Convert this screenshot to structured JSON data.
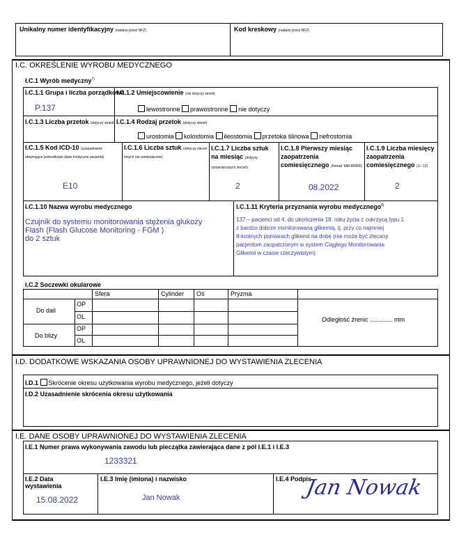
{
  "header": {
    "uid_label": "Unikalny numer identyfikacyjny",
    "uid_note": "(nadany przez NFZ)",
    "barcode_label": "Kod kreskowy",
    "barcode_note": "(nadany przez NFZ)"
  },
  "ic": {
    "title": "I.C. OKREŚLENIE WYROBU MEDYCZNEGO",
    "c1_label": "I.C.1 Wyrób medyczny",
    "c1_sup": "7)",
    "c11_label": "I.C.1.1 Grupa i liczba porządkowa",
    "c11_value": "P.137",
    "c12_label": "I.C.1.2 Umiejscowienie",
    "c12_note": "(nie dotyczy stomii)",
    "c12_options": [
      "lewostronne",
      "prawostronne",
      "nie dotyczy"
    ],
    "c13_label": "I.C.1.3 Liczba przetok",
    "c13_note": "(dotyczy stomii)",
    "c14_label": "I.C.1.4 Rodzaj przetok",
    "c14_note": "(dotyczy stomii)",
    "c14_options": [
      "urostomia",
      "kolostomia",
      "ileostomia",
      "przetoka ślinowa",
      "nefrostomia"
    ],
    "c15_label": "I.C.1.5 Kod ICD-10",
    "c15_note": "(uzasadnienie obejmujące jednostkowe dane medyczne pacjenta)",
    "c15_value": "E10",
    "c16_label": "I.C.1.6 Liczba sztuk",
    "c16_note": "(dotyczy zleceń innych niż comiesięczne)",
    "c17_label": "I.C.1.7 Liczba sztuk na miesiąc",
    "c17_note": "(dotyczy comiesięcznych zleceń)",
    "c17_value": "2",
    "c18_label": "I.C.1.8 Pierwszy miesiąc zaopatrzenia comiesięcznego",
    "c18_note": "(format: MM-RRRR)",
    "c18_value": "08.2022",
    "c19_label": "I.C.1.9 Liczba miesięcy zaopatrzenia comiesięcznego",
    "c19_note": "(1– 12)",
    "c19_value": "2",
    "c110_label": "I.C.1.10 Nazwa wyrobu medycznego",
    "c110_value": [
      "Czujnik do systemu monitorowania stężenia glukozy",
      "Flash (Flash Glucose Monitoring - FGM )",
      "do 2 sztuk"
    ],
    "c111_label": "I.C.1.11 Kryteria przyznania wyrobu medycznego",
    "c111_sup": "8)",
    "c111_value": [
      "137 – pacjenci od 4. do ukończenia 18. roku życia z cukrzycą typu 1",
      "z bardzo dobrze monitorowaną glikemią, tj. przy co najmniej",
      "8-krotnych pomiarach glikemii na dobę (nie może być zlecany",
      "pacjentom zaopatrzonym w system Ciągłego Monitorowania",
      "Glikemii w czasie rzeczywistym)."
    ],
    "c2_label": "I.C.2 Soczewki okularowe",
    "c2_cols": [
      "Sfera",
      "Cylinder",
      "Oś",
      "Pryzma"
    ],
    "c2_dali": "Do dali",
    "c2_blizy": "Do bliży",
    "op": "OP",
    "ol": "OL",
    "pupil": "Odległość źrenic ............. mm"
  },
  "id": {
    "title": "I.D. DODATKOWE WSKAZANIA OSOBY UPRAWNIONEJ DO WYSTAWIENIA ZLECENIA",
    "d1_label": "I.D.1",
    "d1_text": "Skrócenie okresu użytkowania wyrobu medycznego, jeżeli dotyczy",
    "d2_label": "I.D.2 Uzasadnienie skrócenia okresu użytkowania"
  },
  "ie": {
    "title": "I.E. DANE OSOBY UPRAWNIONEJ DO WYSTAWIENIA ZLECENIA",
    "e1_label": "I.E.1 Numer prawa wykonywania zawodu lub pieczątka zawierająca dane z pól I.E.1 i I.E.3",
    "e1_value": "1233321",
    "e2_label": "I.E.2 Data wystawienia",
    "e2_value": "15.08.2022",
    "e3_label": "I.E.3 Imię (imiona) i nazwisko",
    "e3_value": "Jan Nowak",
    "e4_label": "I.E.4 Podpis",
    "signature": "Jan Nowak"
  }
}
